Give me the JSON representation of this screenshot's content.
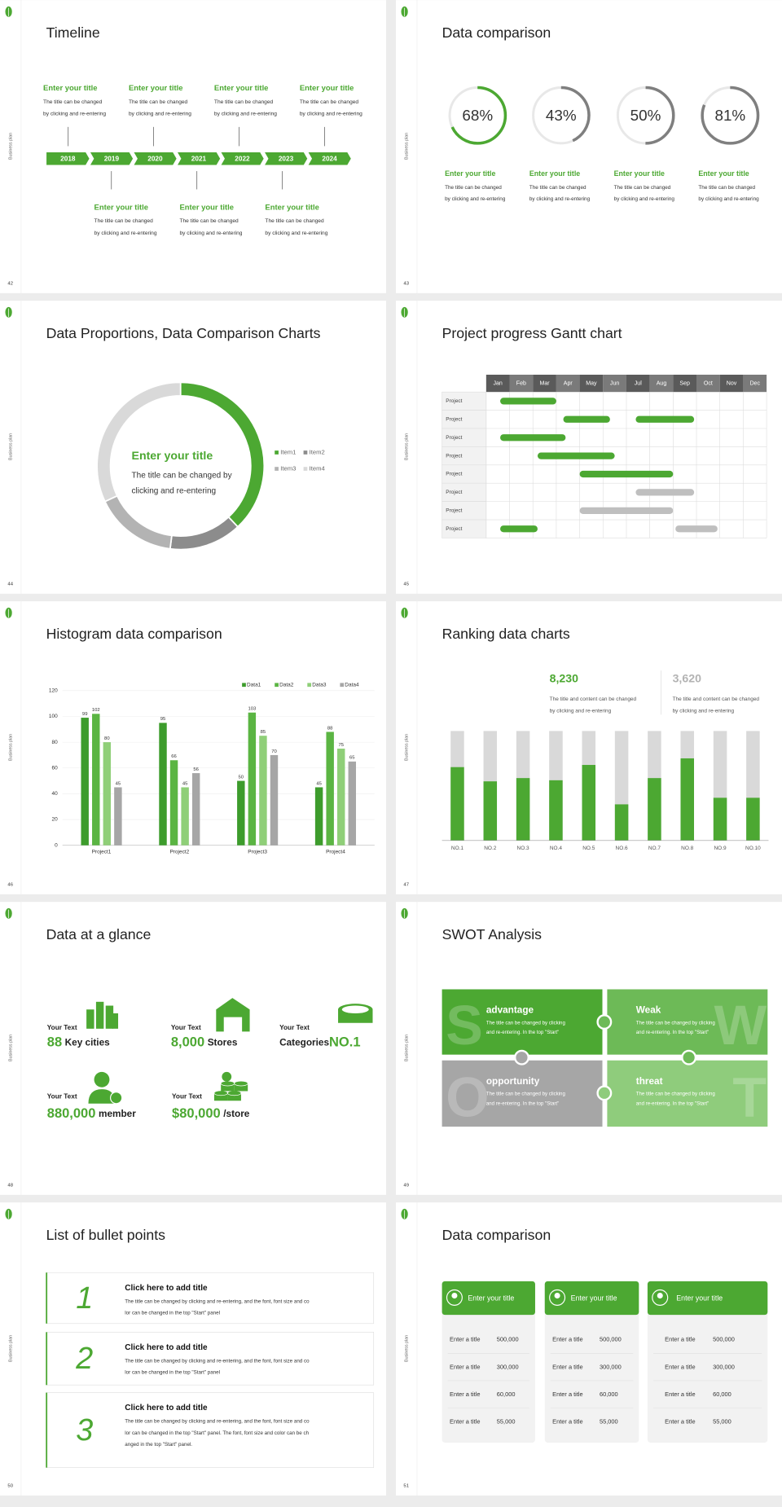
{
  "slides": [
    {
      "number": "42",
      "side_label": "Business plan",
      "title": "Timeline",
      "years": [
        2018,
        2019,
        2020,
        2021,
        2022,
        2023,
        2024
      ],
      "upper_items": [
        {
          "title": "Enter your title",
          "text": [
            "The title can be changed",
            "by clicking and re-entering"
          ]
        },
        {
          "title": "Enter your title",
          "text": [
            "The title can be changed",
            "by clicking and re-entering"
          ]
        },
        {
          "title": "Enter your title",
          "text": [
            "The title can be changed",
            "by clicking and re-entering"
          ]
        },
        {
          "title": "Enter your title",
          "text": [
            "The title can be changed",
            "by clicking and re-entering"
          ]
        }
      ],
      "lower_items": [
        {
          "title": "Enter your title",
          "text": [
            "The title can be changed",
            "by clicking and re-entering"
          ]
        },
        {
          "title": "Enter your title",
          "text": [
            "The title can be changed",
            "by clicking and re-entering"
          ]
        },
        {
          "title": "Enter your title",
          "text": [
            "The title can be changed",
            "by clicking and re-entering"
          ]
        }
      ]
    },
    {
      "number": "43",
      "side_label": "Business plan",
      "title": "Data comparison",
      "values": [
        68,
        43,
        50,
        81
      ],
      "value_labels": [
        "68%",
        "43%",
        "50%",
        "81%"
      ],
      "colors": [
        "#4ca832",
        "#7f7f7f",
        "#7f7f7f",
        "#7f7f7f"
      ],
      "items": [
        {
          "title": "Enter your title",
          "text": [
            "The title can be changed",
            "by clicking and re-entering"
          ]
        },
        {
          "title": "Enter your title",
          "text": [
            "The title can be changed",
            "by clicking and re-entering"
          ]
        },
        {
          "title": "Enter your title",
          "text": [
            "The title can be changed",
            "by clicking and re-entering"
          ]
        },
        {
          "title": "Enter your title",
          "text": [
            "The title can be changed",
            "by clicking and re-entering"
          ]
        }
      ]
    },
    {
      "number": "44",
      "side_label": "Business plan",
      "title": "Data Proportions, Data Comparison Charts",
      "center_title": "Enter your title",
      "center_text": [
        "The title can be changed by",
        "clicking and re-entering"
      ],
      "categories": [
        "Item1",
        "Item2",
        "Item3",
        "Item4"
      ],
      "values": [
        38,
        14,
        16,
        32
      ],
      "colors": [
        "#4ca832",
        "#8c8c8c",
        "#b3b3b3",
        "#d9d9d9"
      ]
    },
    {
      "number": "45",
      "side_label": "Business plan",
      "title": "Project progress Gantt chart",
      "months": [
        "Jan",
        "Feb",
        "Mar",
        "Apr",
        "May",
        "Jun",
        "Jul",
        "Aug",
        "Sep",
        "Oct",
        "Nov",
        "Dec"
      ],
      "rows": [
        {
          "label": "Project",
          "bars": [
            {
              "start": 0.6,
              "end": 3.0,
              "color": "#4ca832"
            }
          ]
        },
        {
          "label": "Project",
          "bars": [
            {
              "start": 3.3,
              "end": 5.3,
              "color": "#4ca832"
            },
            {
              "start": 6.4,
              "end": 8.9,
              "color": "#4ca832"
            }
          ]
        },
        {
          "label": "Project",
          "bars": [
            {
              "start": 0.6,
              "end": 3.4,
              "color": "#4ca832"
            }
          ]
        },
        {
          "label": "Project",
          "bars": [
            {
              "start": 2.2,
              "end": 5.5,
              "color": "#4ca832"
            }
          ]
        },
        {
          "label": "Project",
          "bars": [
            {
              "start": 4.0,
              "end": 8.0,
              "color": "#4ca832"
            }
          ]
        },
        {
          "label": "Project",
          "bars": [
            {
              "start": 6.4,
              "end": 8.9,
              "color": "#bfbfbf"
            }
          ]
        },
        {
          "label": "Project",
          "bars": [
            {
              "start": 4.0,
              "end": 8.0,
              "color": "#bfbfbf"
            }
          ]
        },
        {
          "label": "Project",
          "bars": [
            {
              "start": 0.6,
              "end": 2.2,
              "color": "#4ca832"
            },
            {
              "start": 8.1,
              "end": 9.9,
              "color": "#bfbfbf"
            }
          ]
        }
      ]
    },
    {
      "number": "46",
      "side_label": "Business plan",
      "title": "Histogram data comparison",
      "categories": [
        "Project1",
        "Project2",
        "Project3",
        "Project4"
      ],
      "series": [
        {
          "name": "Data1",
          "color": "#3d9c2c",
          "values": [
            99,
            95,
            50,
            45
          ]
        },
        {
          "name": "Data2",
          "color": "#5bb543",
          "values": [
            102,
            66,
            103,
            88
          ]
        },
        {
          "name": "Data3",
          "color": "#8fcf78",
          "values": [
            80,
            45,
            85,
            75
          ]
        },
        {
          "name": "Data4",
          "color": "#a6a6a6",
          "values": [
            45,
            56,
            70,
            65
          ]
        }
      ],
      "ylim": [
        0,
        120
      ],
      "yticks": [
        0,
        20,
        40,
        60,
        80,
        100,
        120
      ]
    },
    {
      "number": "47",
      "side_label": "Business plan",
      "title": "Ranking data charts",
      "highlights": [
        {
          "value": "8,230",
          "color": "#4ca832",
          "text": [
            "The title and content can be changed",
            "by clicking and re-entering"
          ]
        },
        {
          "value": "3,620",
          "color": "#b3b3b3",
          "text": [
            "The title and content can be changed",
            "by clicking and re-entering"
          ]
        }
      ],
      "categories": [
        "NO.1",
        "NO.2",
        "NO.3",
        "NO.4",
        "NO.5",
        "NO.6",
        "NO.7",
        "NO.8",
        "NO.9",
        "NO.10"
      ],
      "values": [
        67,
        54,
        57,
        55,
        69,
        33,
        57,
        75,
        39,
        39
      ],
      "ylim": [
        0,
        100
      ]
    },
    {
      "number": "48",
      "side_label": "Business plan",
      "title": "Data at a glance",
      "items": [
        {
          "label": "Your Text",
          "value": "88",
          "unit": "Key cities"
        },
        {
          "label": "Your Text",
          "value": "8,000",
          "unit": "Stores"
        },
        {
          "label": "Your Text",
          "value": "NO.1",
          "unit": "Categories"
        },
        {
          "label": "Your Text",
          "value": "880,000",
          "unit": "member"
        },
        {
          "label": "Your Text",
          "value": "$80,000",
          "unit": "/store"
        }
      ]
    },
    {
      "number": "49",
      "side_label": "Business plan",
      "title": "SWOT Analysis",
      "quadrants": [
        {
          "letter": "S",
          "title": "advantage",
          "color": "#4ca832",
          "text": [
            "The title can be changed by clicking",
            "and re-entering. In the top \"Start\""
          ]
        },
        {
          "letter": "W",
          "title": "Weak",
          "color": "#6dba57",
          "text": [
            "The title can be changed by clicking",
            "and re-entering. In the top \"Start\""
          ]
        },
        {
          "letter": "O",
          "title": "opportunity",
          "color": "#a6a6a6",
          "text": [
            "The title can be changed by clicking",
            "and re-entering. In the top \"Start\""
          ]
        },
        {
          "letter": "T",
          "title": "threat",
          "color": "#8fcc7c",
          "text": [
            "The title can be changed by clicking",
            "and re-entering. In the top \"Start\""
          ]
        }
      ]
    },
    {
      "number": "50",
      "side_label": "Business plan",
      "title": "List of bullet points",
      "items": [
        {
          "number": "1",
          "title": "Click here to add title",
          "text": [
            "The title can be changed by clicking and re-entering, and the font, font size and co",
            "lor can be changed in the top \"Start\" panel"
          ]
        },
        {
          "number": "2",
          "title": "Click here to add title",
          "text": [
            "The title can be changed by clicking and re-entering, and the font, font size and co",
            "lor can be changed in the top \"Start\" panel"
          ]
        },
        {
          "number": "3",
          "title": "Click here to add title",
          "text": [
            "The title can be changed by clicking and re-entering, and the font, font size and co",
            "lor can be changed in the top \"Start\" panel. The font, font size and color can be ch",
            "anged in the top \"Start\" panel."
          ]
        }
      ]
    },
    {
      "number": "51",
      "side_label": "Business plan",
      "title": "Data comparison",
      "cards": [
        {
          "title": "Enter your title",
          "rows": [
            {
              "label": "Enter a title",
              "value": "500,000"
            },
            {
              "label": "Enter a title",
              "value": "300,000"
            },
            {
              "label": "Enter a title",
              "value": "60,000"
            },
            {
              "label": "Enter a title",
              "value": "55,000"
            }
          ]
        },
        {
          "title": "Enter your title",
          "rows": [
            {
              "label": "Enter a title",
              "value": "500,000"
            },
            {
              "label": "Enter a title",
              "value": "300,000"
            },
            {
              "label": "Enter a title",
              "value": "60,000"
            },
            {
              "label": "Enter a title",
              "value": "55,000"
            }
          ]
        },
        {
          "title": "Enter your title",
          "rows": [
            {
              "label": "Enter a title",
              "value": "500,000"
            },
            {
              "label": "Enter a title",
              "value": "300,000"
            },
            {
              "label": "Enter a title",
              "value": "60,000"
            },
            {
              "label": "Enter a title",
              "value": "55,000"
            }
          ]
        }
      ]
    }
  ]
}
